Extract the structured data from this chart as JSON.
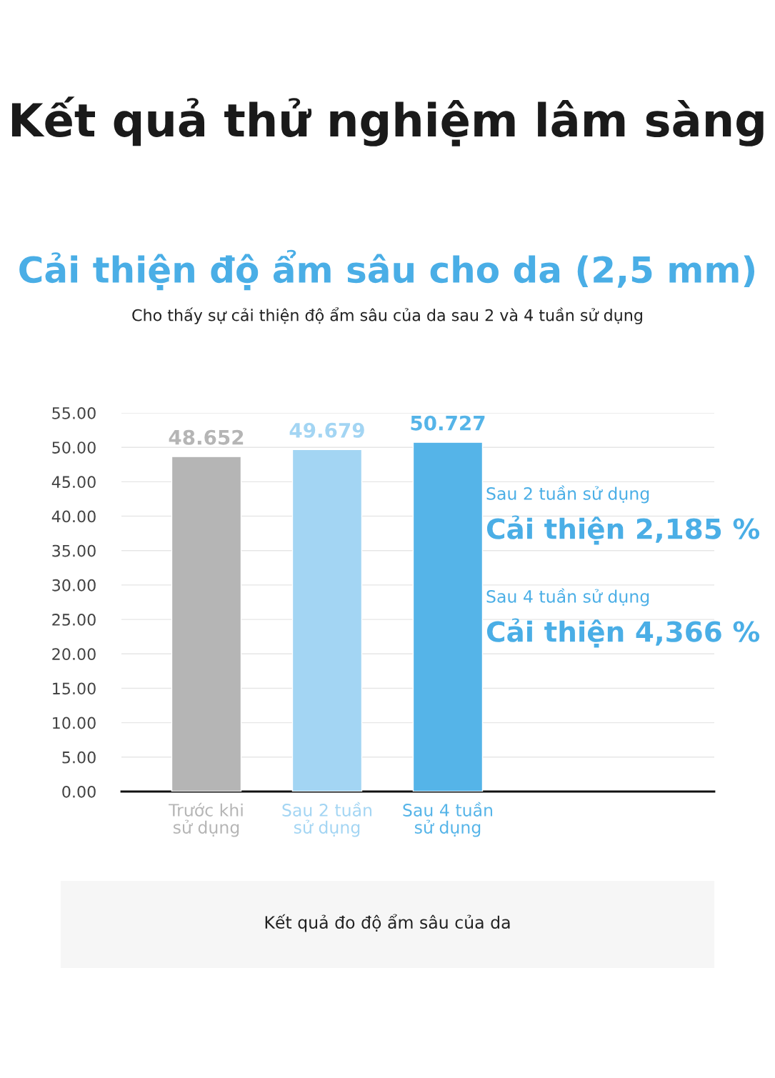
{
  "chart_data": {
    "type": "bar",
    "title": "Kết quả thử nghiệm lâm sàng",
    "subtitle": "Cải thiện độ ẩm sâu cho da (2,5 mm)",
    "categories": [
      "Trước khi sử dụng",
      "Sau 2 tuần sử dụng",
      "Sau 4 tuần sử dụng"
    ],
    "values": [
      48.652,
      49.679,
      50.727
    ],
    "colors": [
      "#b5b5b5",
      "#a3d5f3",
      "#55b4e8"
    ],
    "data_labels": true,
    "ylim": [
      0,
      55
    ],
    "yticks": [
      {
        "value": 0,
        "label": "0.00"
      },
      {
        "value": 5,
        "label": "5.00"
      },
      {
        "value": 10,
        "label": "10.00"
      },
      {
        "value": 15,
        "label": "15.00"
      },
      {
        "value": 20,
        "label": "20.00"
      },
      {
        "value": 25,
        "label": "25.00"
      },
      {
        "value": 30,
        "label": "30.00"
      },
      {
        "value": 35,
        "label": "35.00"
      },
      {
        "value": 40,
        "label": "40.00"
      },
      {
        "value": 45,
        "label": "45.00"
      },
      {
        "value": 50,
        "label": "50.00"
      },
      {
        "value": 55,
        "label": "55.00"
      }
    ],
    "grid": "y",
    "annotations": [
      "Cho thấy sự cải thiện độ ẩm sâu của da sau 2 và 4 tuần sử dụng",
      "Sau 2 tuần sử dụng",
      "Cải thiện 2,185 %",
      "Sau 4 tuần sử dụng",
      "Cải thiện 4,366 %",
      "Kết quả đo độ ẩm sâu của da"
    ]
  }
}
